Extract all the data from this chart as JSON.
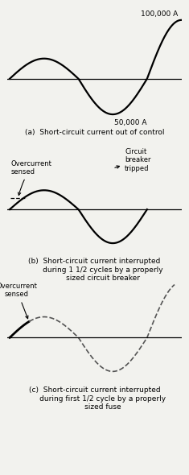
{
  "background_color": "#f2f2ee",
  "panels": [
    {
      "label": "(a)  Short-circuit current out of control",
      "annotation_100k": "100,000 A",
      "annotation_50k": "50,000 A"
    },
    {
      "label": "(b)  Short-circuit current interrupted\n       during 1 1/2 cycles by a properly\n       sized circuit breaker",
      "annotation_overcurrent": "Overcurrent\nsensed",
      "annotation_cb": "Circuit\nbreaker\ntripped"
    },
    {
      "label": "(c)  Short-circuit current interrupted\n       during first 1/2 cycle by a properly\n       sized fuse",
      "annotation_overcurrent": "Overcurrent\nsensed"
    }
  ]
}
